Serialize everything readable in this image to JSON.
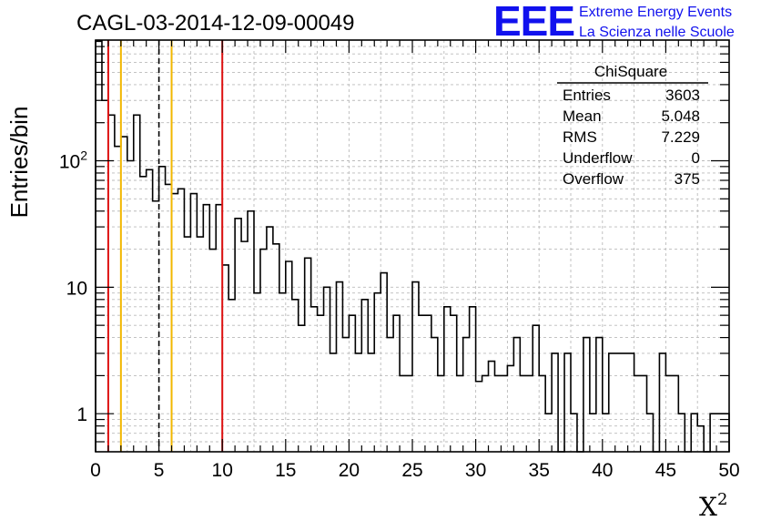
{
  "chart_data": {
    "type": "histogram",
    "title": "CAGL-03-2014-12-09-00049",
    "xlabel": "X",
    "xlabel_superscript": "2",
    "ylabel": "Entries/bin",
    "xlim": [
      0,
      50
    ],
    "ylim": [
      0.5,
      900
    ],
    "yscale": "log",
    "grid": true,
    "bin_width": 0.5,
    "x_ticks": [
      "0",
      "5",
      "10",
      "15",
      "20",
      "25",
      "30",
      "35",
      "40",
      "45",
      "50"
    ],
    "y_ticks": [
      {
        "base": "10",
        "exp": "2",
        "value": 100
      },
      {
        "base": "10",
        "exp": "",
        "value": 10
      },
      {
        "base": "1",
        "exp": "",
        "value": 1
      }
    ],
    "values": [
      880,
      300,
      230,
      130,
      155,
      100,
      230,
      75,
      85,
      48,
      90,
      65,
      55,
      60,
      25,
      55,
      25,
      45,
      20,
      45,
      15,
      8,
      35,
      23,
      40,
      9,
      20,
      30,
      22,
      9,
      16,
      8,
      5,
      17,
      7,
      6,
      10,
      3,
      11,
      4,
      6,
      3,
      8,
      3,
      9,
      13,
      4,
      6,
      2,
      2,
      11,
      6,
      6,
      4,
      2,
      7,
      6,
      2,
      4,
      7,
      1.8,
      2,
      2.6,
      2,
      2,
      2.4,
      4,
      2,
      2,
      5,
      2,
      1,
      3,
      0,
      3,
      1,
      0,
      4,
      1,
      4,
      1,
      3,
      3,
      3,
      3,
      2,
      2,
      1,
      0,
      3,
      2,
      2,
      1,
      0,
      1,
      0.8,
      0,
      1,
      1,
      1,
      1,
      1,
      1,
      3,
      0,
      1,
      0.8,
      2,
      1,
      0,
      2,
      0,
      0,
      0,
      0,
      0
    ],
    "vertical_lines": [
      {
        "x": 1,
        "color": "#dd1111",
        "style": "solid"
      },
      {
        "x": 2,
        "color": "#f2b700",
        "style": "solid"
      },
      {
        "x": 5,
        "color": "#000000",
        "style": "dashed"
      },
      {
        "x": 6,
        "color": "#f2b700",
        "style": "solid"
      },
      {
        "x": 10,
        "color": "#dd1111",
        "style": "solid"
      }
    ],
    "stats": {
      "name": "ChiSquare",
      "rows": [
        {
          "label": "Entries",
          "value": "3603"
        },
        {
          "label": "Mean",
          "value": "5.048"
        },
        {
          "label": "RMS",
          "value": "7.229"
        },
        {
          "label": "Underflow",
          "value": "0"
        },
        {
          "label": "Overflow",
          "value": "375"
        }
      ]
    }
  },
  "branding": {
    "logo": "EEE",
    "line1": "Extreme Energy Events",
    "line2": "La Scienza nelle Scuole"
  }
}
